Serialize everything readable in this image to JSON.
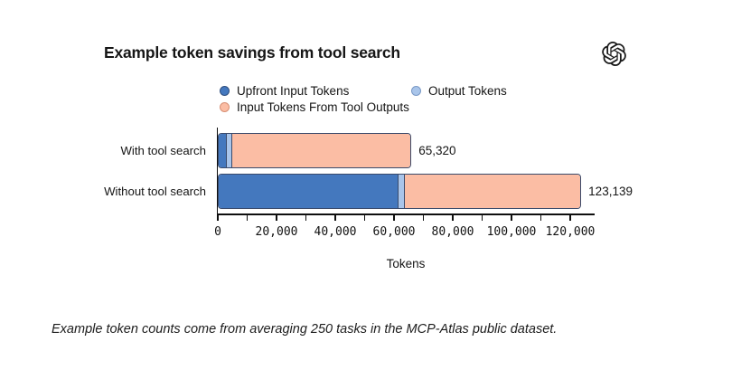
{
  "header": {
    "title": "Example token savings from tool search",
    "logo": "openai-logo"
  },
  "legend": [
    {
      "label": "Upfront Input Tokens",
      "color": "#4478BE",
      "border": "#2E4E7E"
    },
    {
      "label": "Output Tokens",
      "color": "#A9C5EA",
      "border": "#7A99C6"
    },
    {
      "label": "Input Tokens From Tool Outputs",
      "color": "#FBBDA4",
      "border": "#D78F74"
    }
  ],
  "chart_data": {
    "type": "bar",
    "orientation": "horizontal",
    "stacked": true,
    "categories": [
      "With tool search",
      "Without tool search"
    ],
    "series": [
      {
        "name": "Upfront Input Tokens",
        "color": "#4478BE",
        "values": [
          2800,
          61200
        ]
      },
      {
        "name": "Output Tokens",
        "color": "#A9C5EA",
        "values": [
          1900,
          2200
        ]
      },
      {
        "name": "Input Tokens From Tool Outputs",
        "color": "#FBBDA4",
        "values": [
          60620,
          59739
        ]
      }
    ],
    "totals": [
      65320,
      123139
    ],
    "total_labels": [
      "65,320",
      "123,139"
    ],
    "xlabel": "Tokens",
    "xlim": [
      0,
      128000
    ],
    "xticks_minor_step": 10000,
    "xticks_minor_max": 120000,
    "xticks_major": [
      0,
      20000,
      40000,
      60000,
      80000,
      100000,
      120000
    ],
    "xtick_labels": [
      "0",
      "20,000",
      "40,000",
      "60,000",
      "80,000",
      "100,000",
      "120,000"
    ],
    "bar_border": "#3A4A6B",
    "grid": false,
    "legend_position": "top"
  },
  "footer": {
    "note": "Example token counts come from averaging 250 tasks in the MCP-Atlas public dataset."
  }
}
